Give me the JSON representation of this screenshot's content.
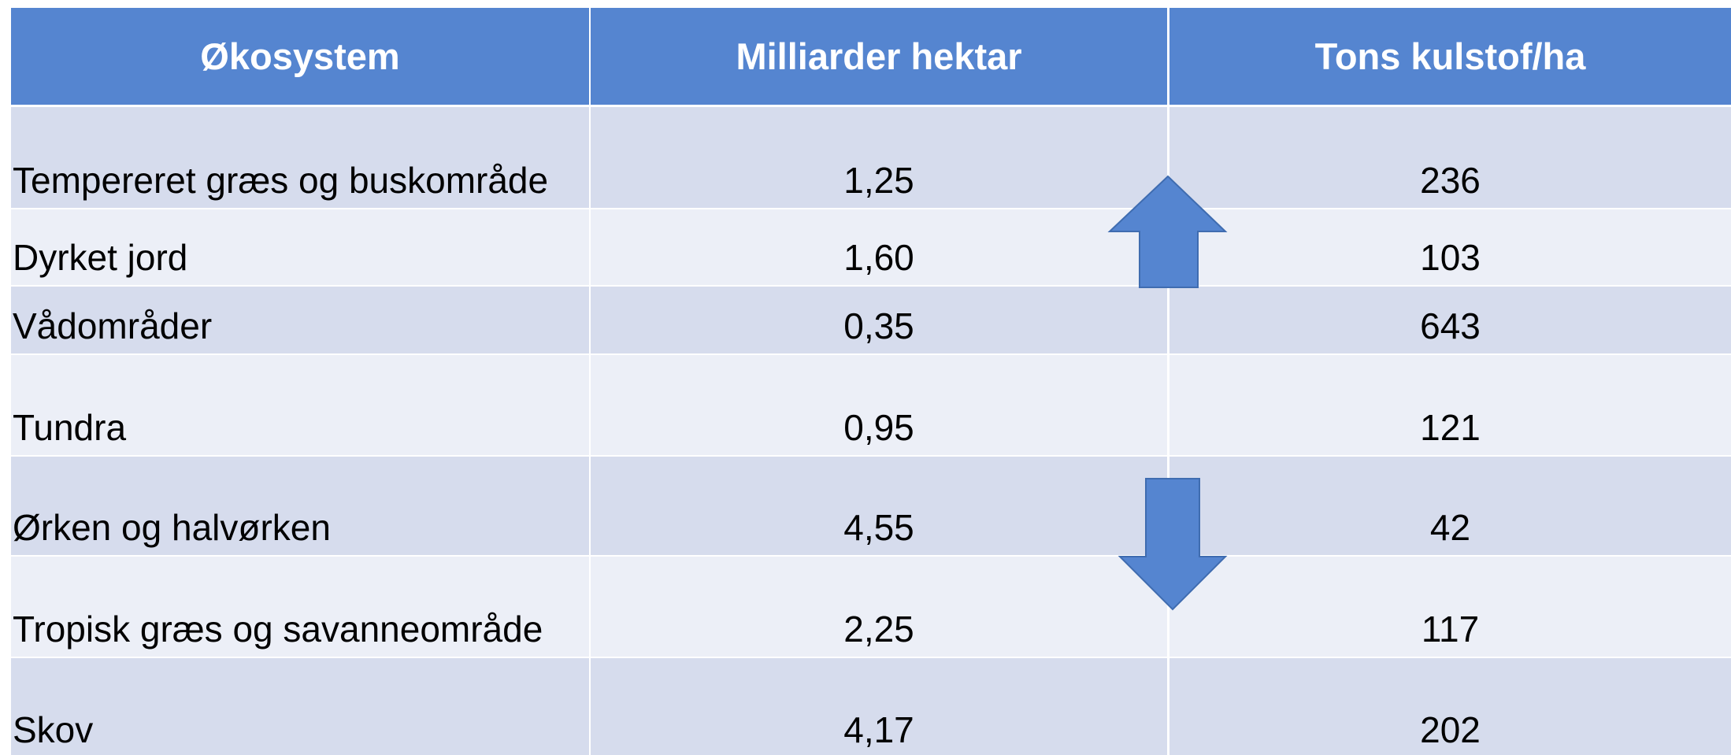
{
  "table": {
    "header": [
      "Økosystem",
      "Milliarder hektar",
      "Tons kulstof/ha"
    ],
    "rows": [
      [
        "Tempereret græs og buskområde",
        "1,25",
        "236"
      ],
      [
        "Dyrket jord",
        "1,60",
        "103"
      ],
      [
        "Vådområder",
        "0,35",
        "643"
      ],
      [
        "Tundra",
        "0,95",
        "121"
      ],
      [
        "Ørken og halvørken",
        "4,55",
        "42"
      ],
      [
        "Tropisk græs og savanneområde",
        "2,25",
        "117"
      ],
      [
        "Skov",
        "4,17",
        "202"
      ]
    ]
  }
}
